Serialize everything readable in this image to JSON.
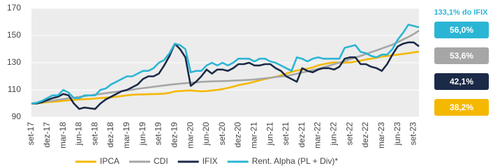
{
  "chart_data": {
    "type": "line",
    "annotation": "133,1% do IFIX",
    "categories": [
      "set-17",
      null,
      null,
      "dez-17",
      null,
      null,
      "mar-18",
      null,
      null,
      "jun-18",
      null,
      null,
      "set-18",
      null,
      null,
      "dez-18",
      null,
      null,
      "mar-19",
      null,
      null,
      "jun-19",
      null,
      null,
      "set-19",
      null,
      null,
      "dez-19",
      null,
      null,
      "mar-20",
      null,
      null,
      "jun-20",
      null,
      null,
      "set-20",
      null,
      null,
      "dez-20",
      null,
      null,
      "mar-21",
      null,
      null,
      "jun-21",
      null,
      null,
      "set-21",
      null,
      null,
      "dez-21",
      null,
      null,
      "mar-22",
      null,
      null,
      "jun-22",
      null,
      null,
      "set-22",
      null,
      null,
      "dez-22",
      null,
      null,
      "mar-23",
      null,
      null,
      "jun-23",
      null,
      null,
      "set-23",
      null
    ],
    "series": [
      {
        "name": "IPCA",
        "color": "#f5b800",
        "end_label": {
          "value": 38.2,
          "label": "38,2%"
        },
        "values": [
          100,
          100.2,
          100.5,
          101,
          101.3,
          101.6,
          102,
          102.3,
          102.6,
          103,
          103.2,
          103.4,
          103.7,
          104,
          104.3,
          104.6,
          105,
          105.5,
          106,
          106.4,
          106.6,
          106.7,
          106.8,
          106.9,
          107,
          107.3,
          107.8,
          108.9,
          109.2,
          109.5,
          109.6,
          109.3,
          109,
          109.2,
          109.6,
          110,
          110.6,
          111.5,
          112.4,
          113.5,
          114.3,
          115,
          116,
          117,
          118,
          118.8,
          119.7,
          120.7,
          122,
          123.3,
          124.3,
          125,
          125.7,
          126.5,
          128,
          129,
          129.7,
          130.3,
          130,
          130,
          130.2,
          130.8,
          131.5,
          132.4,
          133,
          133.7,
          134.5,
          135,
          135.5,
          136,
          136.5,
          137,
          137.6,
          138.2
        ]
      },
      {
        "name": "CDI",
        "color": "#a6a6a6",
        "end_label": {
          "value": 53.6,
          "label": "53,6%"
        },
        "values": [
          100,
          100.6,
          101.1,
          101.6,
          102.1,
          102.7,
          103.3,
          103.8,
          104.3,
          104.9,
          105.4,
          106,
          106.5,
          107,
          107.6,
          108.1,
          108.6,
          109.2,
          109.7,
          110.2,
          110.8,
          111.3,
          111.8,
          112.3,
          112.8,
          113.3,
          113.8,
          114.2,
          114.6,
          115,
          115.3,
          115.6,
          115.9,
          116.1,
          116.3,
          116.4,
          116.5,
          116.6,
          116.8,
          117,
          117.2,
          117.4,
          117.7,
          118.1,
          118.5,
          119,
          119.5,
          119.9,
          120.2,
          121,
          121.9,
          122.8,
          123.6,
          124.5,
          125.5,
          126.6,
          127.7,
          128.9,
          130.1,
          131.3,
          132.5,
          133.8,
          135.1,
          136.4,
          137.8,
          139.1,
          140.5,
          141.9,
          143.3,
          145.2,
          147.1,
          149,
          151.1,
          153.6
        ]
      },
      {
        "name": "IFIX",
        "color": "#1b2a47",
        "end_label": {
          "value": 42.1,
          "label": "42,1%"
        },
        "values": [
          100,
          100,
          101,
          102.5,
          104,
          105,
          107,
          106,
          100,
          96,
          97,
          96.5,
          96,
          100,
          103,
          105,
          107,
          109,
          110,
          112,
          114,
          118,
          120,
          120,
          122,
          128,
          135,
          144,
          140,
          134,
          113,
          116,
          120,
          125,
          122,
          125,
          125,
          124,
          126,
          129,
          129,
          130,
          128,
          128,
          129,
          129,
          126,
          124,
          120,
          118,
          116,
          126,
          124,
          123,
          125,
          126,
          126,
          125,
          127,
          133,
          134,
          134,
          129,
          129,
          127,
          126,
          124,
          129,
          136,
          142,
          144,
          145,
          145,
          142.1
        ]
      },
      {
        "name": "Rent. Alpha (PL + Div)*",
        "color": "#2bb5d4",
        "end_label": {
          "value": 56.0,
          "label": "56,0%"
        },
        "values": [
          100,
          100.5,
          102,
          104,
          106,
          106,
          110,
          108,
          104,
          104,
          106,
          106,
          106,
          110,
          111,
          114,
          116,
          118,
          120,
          120,
          122,
          124,
          124,
          126,
          130,
          132,
          137,
          144,
          143,
          140,
          123,
          124,
          124,
          128,
          130,
          128,
          130,
          128,
          130,
          133,
          133,
          133,
          131,
          133,
          133,
          131,
          130,
          128,
          126,
          124,
          134,
          133,
          131,
          133,
          134,
          133,
          133,
          133,
          133,
          141,
          142,
          143,
          138,
          137,
          135,
          134,
          136,
          136,
          140,
          147,
          152,
          158,
          157,
          156
        ]
      }
    ],
    "ylim": [
      90,
      170
    ],
    "yticks": [
      90,
      110,
      130,
      150,
      170
    ],
    "grid": true
  }
}
